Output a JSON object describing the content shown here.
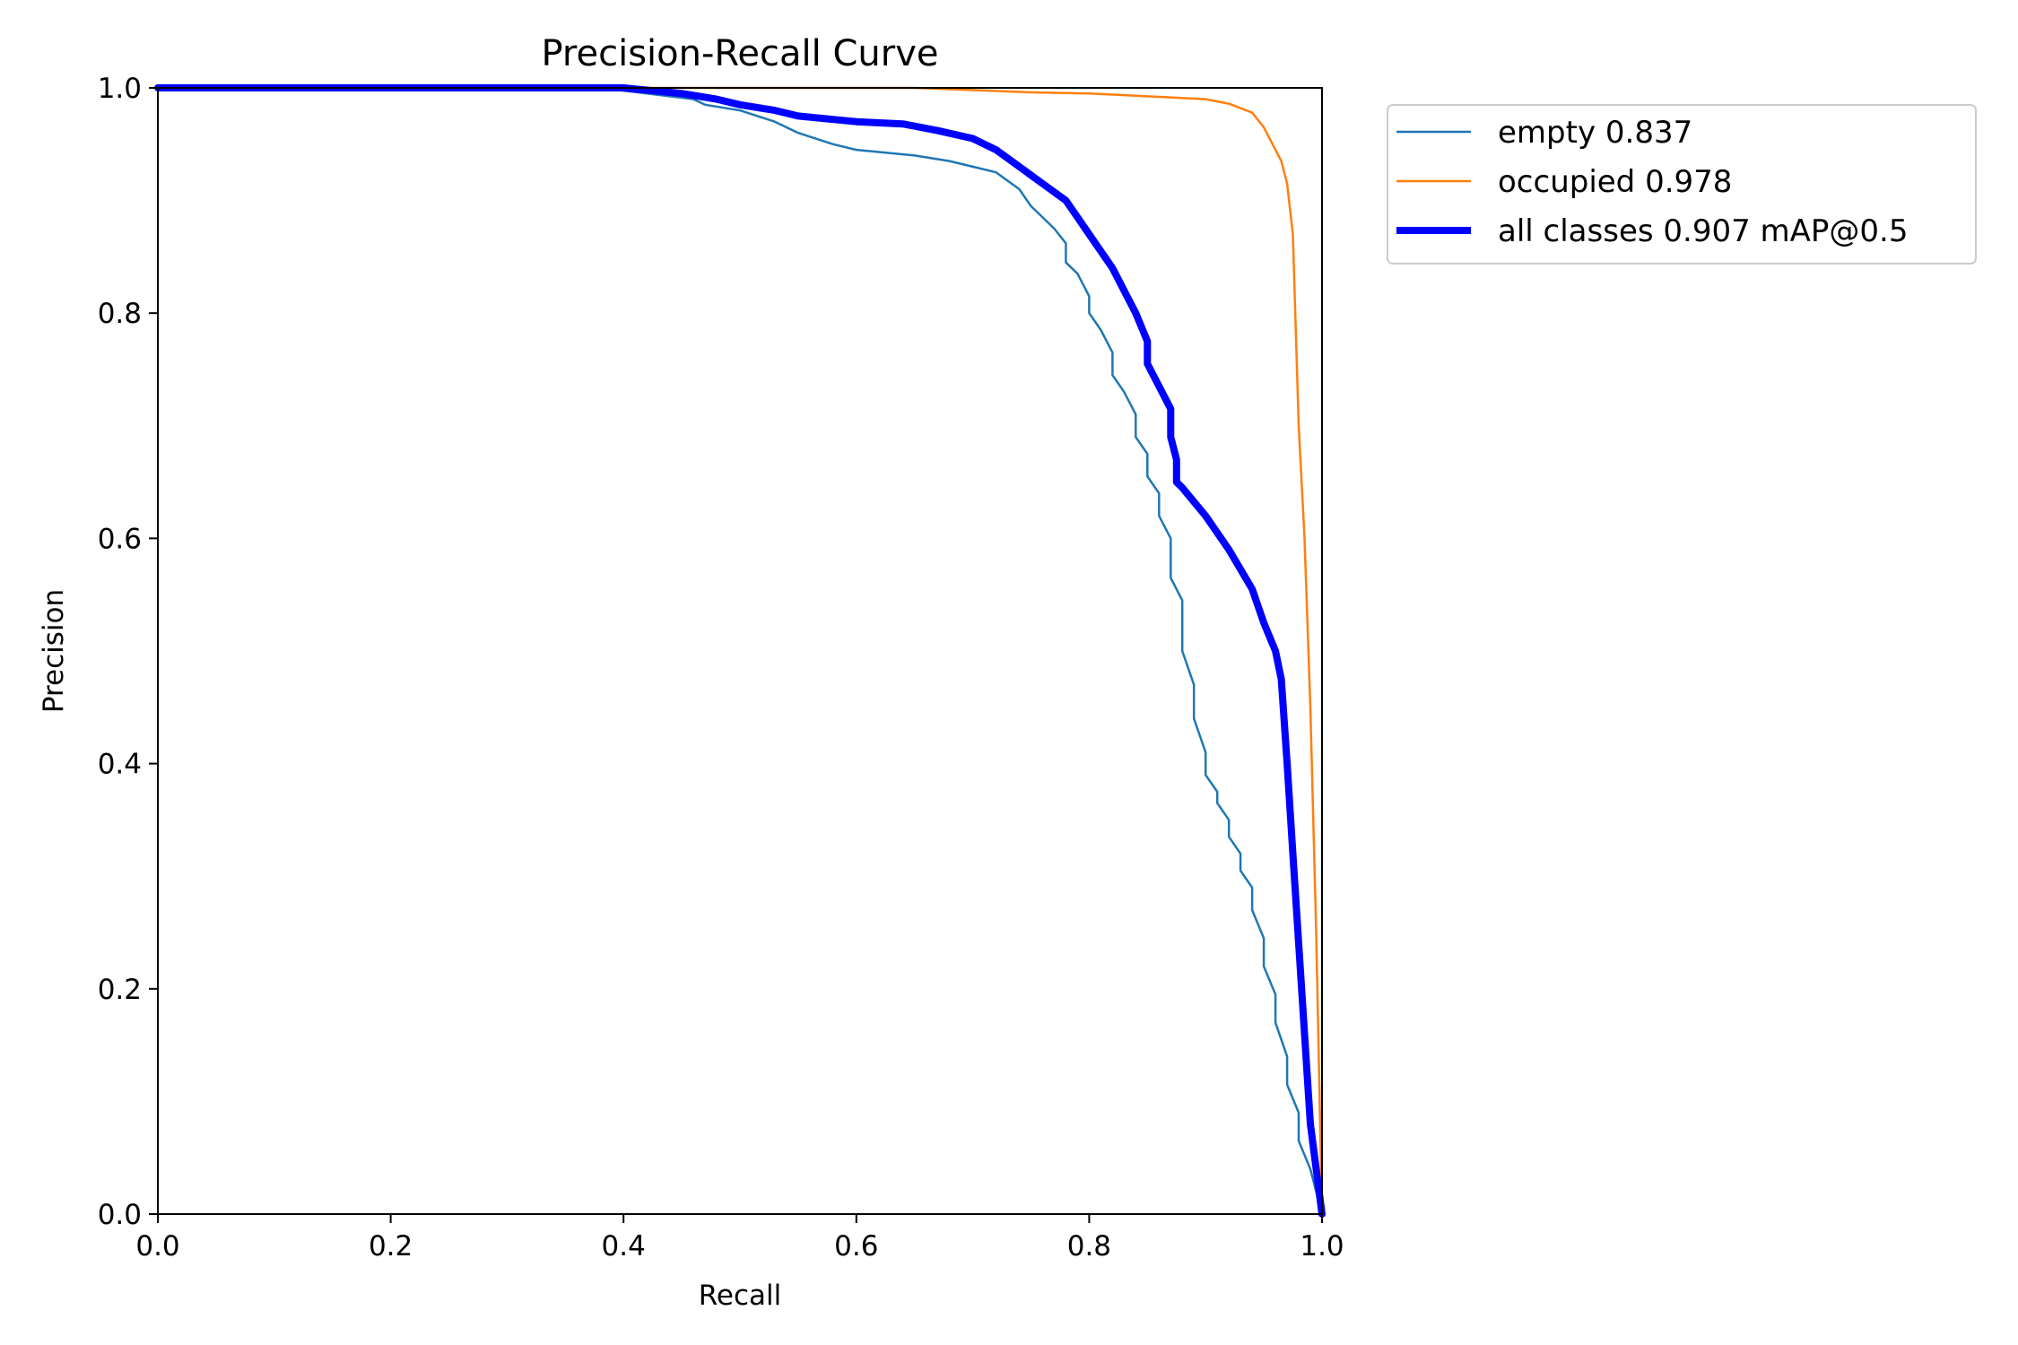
{
  "chart_data": {
    "type": "line",
    "title": "Precision-Recall Curve",
    "xlabel": "Recall",
    "ylabel": "Precision",
    "xlim": [
      0,
      1
    ],
    "ylim": [
      0,
      1
    ],
    "xticks": [
      "0.0",
      "0.2",
      "0.4",
      "0.6",
      "0.8",
      "1.0"
    ],
    "yticks": [
      "0.0",
      "0.2",
      "0.4",
      "0.6",
      "0.8",
      "1.0"
    ],
    "grid": false,
    "legend_position": "outside-top-right",
    "series": [
      {
        "name": "empty 0.837",
        "color": "#1f77b4",
        "width": "thin",
        "x": [
          0.0,
          0.38,
          0.42,
          0.46,
          0.47,
          0.5,
          0.53,
          0.55,
          0.58,
          0.6,
          0.65,
          0.68,
          0.7,
          0.72,
          0.74,
          0.75,
          0.76,
          0.77,
          0.78,
          0.78,
          0.79,
          0.8,
          0.8,
          0.81,
          0.82,
          0.82,
          0.83,
          0.84,
          0.84,
          0.85,
          0.85,
          0.86,
          0.86,
          0.87,
          0.87,
          0.87,
          0.88,
          0.88,
          0.88,
          0.89,
          0.89,
          0.9,
          0.9,
          0.91,
          0.91,
          0.92,
          0.92,
          0.93,
          0.93,
          0.94,
          0.94,
          0.95,
          0.95,
          0.96,
          0.96,
          0.97,
          0.97,
          0.98,
          0.98,
          0.99,
          1.0
        ],
        "y": [
          1.0,
          1.0,
          0.995,
          0.99,
          0.985,
          0.98,
          0.97,
          0.96,
          0.95,
          0.945,
          0.94,
          0.935,
          0.93,
          0.925,
          0.91,
          0.895,
          0.885,
          0.875,
          0.862,
          0.845,
          0.835,
          0.815,
          0.8,
          0.785,
          0.765,
          0.745,
          0.73,
          0.71,
          0.69,
          0.675,
          0.655,
          0.64,
          0.62,
          0.6,
          0.58,
          0.565,
          0.545,
          0.52,
          0.5,
          0.47,
          0.44,
          0.41,
          0.39,
          0.375,
          0.365,
          0.35,
          0.335,
          0.32,
          0.305,
          0.29,
          0.27,
          0.245,
          0.22,
          0.195,
          0.17,
          0.14,
          0.115,
          0.09,
          0.065,
          0.04,
          0.0
        ]
      },
      {
        "name": "occupied 0.978",
        "color": "#ff7f0e",
        "width": "thin",
        "x": [
          0.0,
          0.55,
          0.65,
          0.7,
          0.75,
          0.8,
          0.84,
          0.86,
          0.9,
          0.92,
          0.94,
          0.95,
          0.955,
          0.96,
          0.965,
          0.97,
          0.975,
          0.98,
          0.985,
          0.99,
          0.995,
          1.0
        ],
        "y": [
          1.0,
          1.0,
          1.0,
          0.998,
          0.996,
          0.995,
          0.993,
          0.992,
          0.99,
          0.986,
          0.978,
          0.965,
          0.955,
          0.945,
          0.935,
          0.915,
          0.87,
          0.7,
          0.6,
          0.45,
          0.25,
          0.0
        ]
      },
      {
        "name": "all classes 0.907 mAP@0.5",
        "color": "#0000ff",
        "width": "thick",
        "x": [
          0.0,
          0.4,
          0.45,
          0.48,
          0.5,
          0.53,
          0.55,
          0.58,
          0.6,
          0.64,
          0.67,
          0.7,
          0.72,
          0.74,
          0.76,
          0.78,
          0.79,
          0.8,
          0.81,
          0.82,
          0.83,
          0.84,
          0.85,
          0.85,
          0.86,
          0.87,
          0.87,
          0.875,
          0.875,
          0.88,
          0.9,
          0.92,
          0.94,
          0.95,
          0.96,
          0.965,
          0.97,
          0.975,
          0.98,
          0.985,
          0.99,
          1.0
        ],
        "y": [
          1.0,
          1.0,
          0.995,
          0.99,
          0.985,
          0.98,
          0.975,
          0.972,
          0.97,
          0.968,
          0.962,
          0.955,
          0.945,
          0.93,
          0.915,
          0.9,
          0.885,
          0.87,
          0.855,
          0.84,
          0.82,
          0.8,
          0.775,
          0.755,
          0.735,
          0.715,
          0.69,
          0.67,
          0.65,
          0.645,
          0.62,
          0.59,
          0.555,
          0.525,
          0.5,
          0.475,
          0.4,
          0.32,
          0.24,
          0.16,
          0.08,
          0.0
        ]
      }
    ]
  }
}
